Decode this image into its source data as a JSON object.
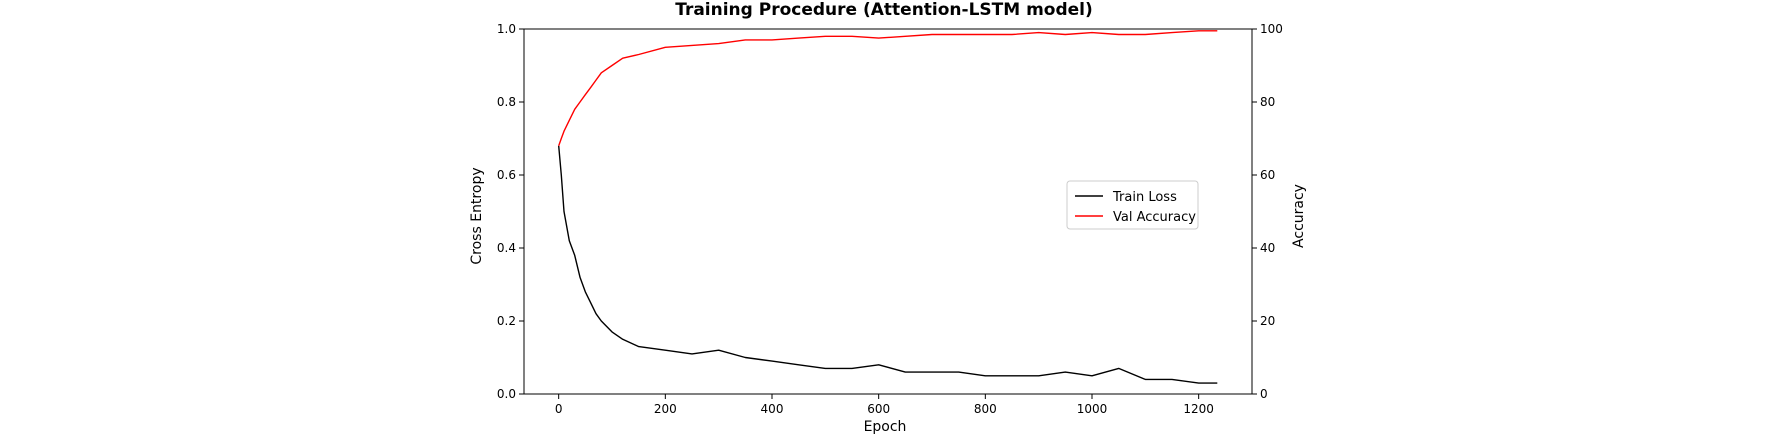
{
  "chart_data": {
    "type": "line",
    "title": "Training Procedure (Attention-LSTM model)",
    "xlabel": "Epoch",
    "ylabel_left": "Cross Entropy",
    "ylabel_right": "Accuracy",
    "xlim": [
      -65,
      1300
    ],
    "ylim_left": [
      0.0,
      1.0
    ],
    "ylim_right": [
      0,
      100
    ],
    "x_ticks": [
      0,
      200,
      400,
      600,
      800,
      1000,
      1200
    ],
    "y_left_ticks": [
      0.0,
      0.2,
      0.4,
      0.6,
      0.8,
      1.0
    ],
    "y_right_ticks": [
      0,
      20,
      40,
      60,
      80,
      100
    ],
    "grid": false,
    "legend_position": "center-right",
    "colors": {
      "train_loss": "#000000",
      "val_accuracy": "#ff0000"
    },
    "series": [
      {
        "name": "Train Loss",
        "axis": "left",
        "x": [
          0,
          5,
          10,
          20,
          30,
          40,
          50,
          60,
          70,
          80,
          100,
          120,
          150,
          200,
          250,
          300,
          350,
          400,
          450,
          500,
          550,
          600,
          650,
          700,
          750,
          800,
          850,
          900,
          950,
          1000,
          1050,
          1100,
          1150,
          1200,
          1235
        ],
        "values": [
          0.68,
          0.6,
          0.5,
          0.42,
          0.38,
          0.32,
          0.28,
          0.25,
          0.22,
          0.2,
          0.17,
          0.15,
          0.13,
          0.12,
          0.11,
          0.12,
          0.1,
          0.09,
          0.08,
          0.07,
          0.07,
          0.08,
          0.06,
          0.06,
          0.06,
          0.05,
          0.05,
          0.05,
          0.06,
          0.05,
          0.07,
          0.04,
          0.04,
          0.03,
          0.03
        ]
      },
      {
        "name": "Val Accuracy",
        "axis": "right",
        "x": [
          0,
          5,
          10,
          20,
          30,
          40,
          50,
          60,
          70,
          80,
          100,
          120,
          150,
          200,
          250,
          300,
          350,
          400,
          450,
          500,
          550,
          600,
          650,
          700,
          750,
          800,
          850,
          900,
          950,
          1000,
          1050,
          1100,
          1150,
          1200,
          1235
        ],
        "values": [
          68,
          70,
          72,
          75,
          78,
          80,
          82,
          84,
          86,
          88,
          90,
          92,
          93,
          95,
          95.5,
          96,
          97,
          97,
          97.5,
          98,
          98,
          97.5,
          98,
          98.5,
          98.5,
          98.5,
          98.5,
          99,
          98.5,
          99,
          98.5,
          98.5,
          99,
          99.5,
          99.5
        ]
      }
    ]
  }
}
